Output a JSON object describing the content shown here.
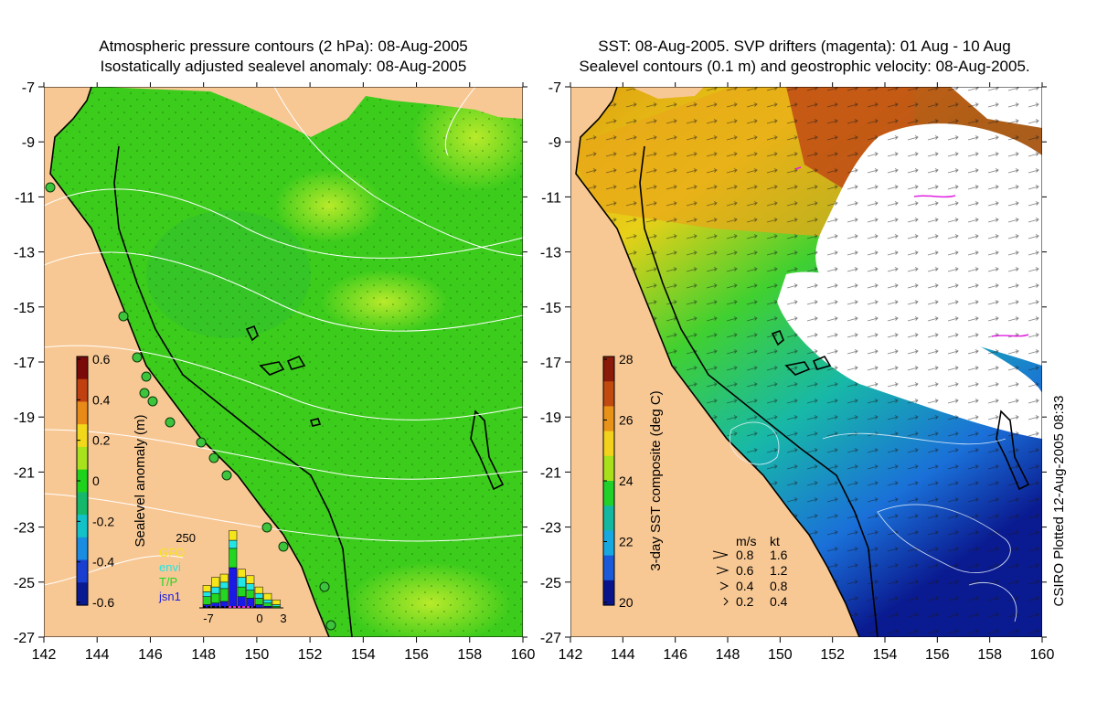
{
  "left_panel": {
    "title_line1": "Atmospheric pressure contours (2 hPa): 08-Aug-2005",
    "title_line2": "Isostatically adjusted sealevel anomaly: 08-Aug-2005",
    "colorbar": {
      "label": "Sealevel anomaly (m)",
      "ticks": [
        "0.6",
        "0.4",
        "0.2",
        "0",
        "-0.2",
        "-0.4",
        "-0.6"
      ],
      "palette": [
        "#7a0a0a",
        "#c0400f",
        "#e88a18",
        "#f2d81a",
        "#a8e21c",
        "#1fd21c",
        "#15b86a",
        "#12c2c8",
        "#1a8de0",
        "#1a3fd0",
        "#0a1a90"
      ]
    },
    "altimeter_legend": {
      "max_label": "250",
      "items": [
        {
          "label": "GFO",
          "color": "#f5e61a"
        },
        {
          "label": "envi",
          "color": "#22e6e6"
        },
        {
          "label": "T/P",
          "color": "#22d622"
        },
        {
          "label": "jsn1",
          "color": "#1a1ae6"
        }
      ],
      "x_ticks": [
        "-7",
        "0",
        "3"
      ],
      "stacks": [
        [
          20,
          15,
          25,
          10
        ],
        [
          30,
          20,
          30,
          15
        ],
        [
          25,
          20,
          40,
          20
        ],
        [
          30,
          25,
          60,
          125
        ],
        [
          25,
          30,
          30,
          35
        ],
        [
          25,
          20,
          25,
          30
        ],
        [
          20,
          15,
          20,
          10
        ],
        [
          20,
          10,
          10,
          5
        ],
        [
          15,
          5,
          5,
          0
        ]
      ]
    }
  },
  "right_panel": {
    "title_line1": "SST: 08-Aug-2005. SVP drifters (magenta): 01 Aug - 10 Aug",
    "title_line2": "Sealevel contours (0.1 m) and geostrophic velocity: 08-Aug-2005.",
    "colorbar": {
      "label": "3-day SST composite (deg C)",
      "ticks": [
        "28",
        "26",
        "24",
        "22",
        "20"
      ],
      "palette": [
        "#8a1a0a",
        "#c04a10",
        "#e89218",
        "#f2d21a",
        "#a8e01c",
        "#22d02a",
        "#14b8a0",
        "#18a8e0",
        "#1a5ad8",
        "#0a148a"
      ]
    },
    "velocity_legend": {
      "header_ms": "m/s",
      "header_kt": "kt",
      "rows": [
        {
          "ms": "0.8",
          "kt": "1.6"
        },
        {
          "ms": "0.6",
          "kt": "1.2"
        },
        {
          "ms": "0.4",
          "kt": "0.8"
        },
        {
          "ms": "0.2",
          "kt": "0.4"
        }
      ]
    }
  },
  "axes": {
    "lon_labels": [
      "142",
      "144",
      "146",
      "148",
      "150",
      "152",
      "154",
      "156",
      "158",
      "160"
    ],
    "lat_labels": [
      "-7",
      "-9",
      "-11",
      "-13",
      "-15",
      "-17",
      "-19",
      "-21",
      "-23",
      "-25",
      "-27"
    ]
  },
  "credit": "CSIRO Plotted 12-Aug-2005 08:33",
  "colors": {
    "land": "#f8c894",
    "ocean_green": "#3ccc1c",
    "contour": "#ffffff",
    "coastline": "#000000",
    "drifter": "#e020e0"
  }
}
